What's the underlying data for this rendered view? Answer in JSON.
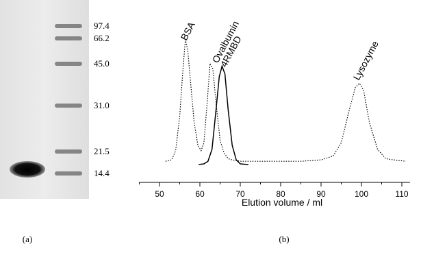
{
  "gel": {
    "marker_labels": [
      "97.4",
      "66.2",
      "45.0",
      "31.0",
      "21.5",
      "14.4"
    ],
    "caption": "(a)"
  },
  "chart_data": {
    "type": "line",
    "xlabel": "Elution volume / ml",
    "caption": "(b)",
    "xlim": [
      45,
      112
    ],
    "xticks": [
      50,
      60,
      70,
      80,
      90,
      100,
      110
    ],
    "xminor": [
      45,
      55,
      65,
      75,
      85,
      95,
      105
    ],
    "ylim": [
      0,
      110
    ],
    "annotations": [
      "BSA",
      "Ovalbumin",
      "4RMBD",
      "Lysozyme"
    ],
    "series": [
      {
        "style": "dotted",
        "color": "#000000",
        "x": [
          51.5,
          53,
          54,
          55,
          55.8,
          56.4,
          57,
          57.8,
          58.6,
          59.5,
          60.3,
          61,
          61.8,
          62.5,
          63.2,
          64,
          65,
          66,
          67,
          68,
          70,
          75,
          80,
          85,
          90,
          93,
          95,
          97,
          98.5,
          99.5,
          100.5,
          102,
          104,
          106,
          108,
          111
        ],
        "values": [
          16,
          17,
          24,
          50,
          85,
          108,
          100,
          72,
          45,
          28,
          24,
          30,
          60,
          90,
          86,
          60,
          32,
          22,
          18,
          17,
          16,
          16,
          16,
          16,
          17,
          20,
          30,
          55,
          72,
          75,
          70,
          45,
          25,
          18,
          17,
          16
        ]
      },
      {
        "style": "solid",
        "color": "#000000",
        "x": [
          59.7,
          61,
          62,
          63,
          64,
          64.8,
          65.5,
          66.2,
          67,
          68,
          69,
          70,
          72
        ],
        "values": [
          13.5,
          14,
          16,
          25,
          55,
          80,
          88,
          82,
          55,
          28,
          17,
          14,
          13.5
        ]
      }
    ]
  }
}
